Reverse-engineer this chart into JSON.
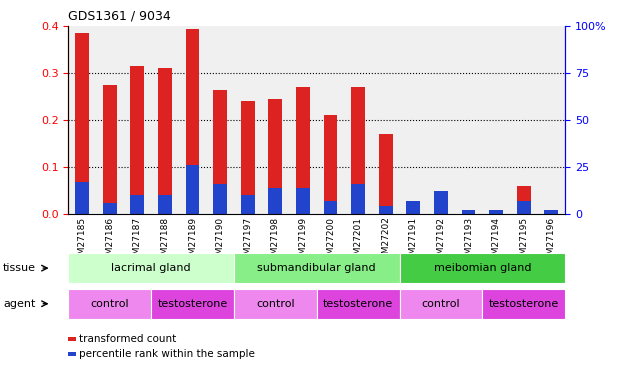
{
  "title": "GDS1361 / 9034",
  "samples": [
    "GSM27185",
    "GSM27186",
    "GSM27187",
    "GSM27188",
    "GSM27189",
    "GSM27190",
    "GSM27197",
    "GSM27198",
    "GSM27199",
    "GSM27200",
    "GSM27201",
    "GSM27202",
    "GSM27191",
    "GSM27192",
    "GSM27193",
    "GSM27194",
    "GSM27195",
    "GSM27196"
  ],
  "red_values": [
    0.385,
    0.275,
    0.315,
    0.31,
    0.395,
    0.265,
    0.24,
    0.245,
    0.27,
    0.21,
    0.27,
    0.17,
    0.0,
    0.04,
    0.0,
    0.0,
    0.06,
    0.0
  ],
  "blue_pct": [
    17,
    6,
    10,
    10,
    26,
    16,
    10,
    14,
    14,
    7,
    16,
    4,
    7,
    12,
    2,
    2,
    7,
    2
  ],
  "tissue_groups": [
    {
      "label": "lacrimal gland",
      "start": 0,
      "end": 6,
      "color": "#ccffcc"
    },
    {
      "label": "submandibular gland",
      "start": 6,
      "end": 12,
      "color": "#88ee88"
    },
    {
      "label": "meibomian gland",
      "start": 12,
      "end": 18,
      "color": "#44cc44"
    }
  ],
  "agent_groups": [
    {
      "label": "control",
      "start": 0,
      "end": 3,
      "color": "#ee88ee"
    },
    {
      "label": "testosterone",
      "start": 3,
      "end": 6,
      "color": "#dd44dd"
    },
    {
      "label": "control",
      "start": 6,
      "end": 9,
      "color": "#ee88ee"
    },
    {
      "label": "testosterone",
      "start": 9,
      "end": 12,
      "color": "#dd44dd"
    },
    {
      "label": "control",
      "start": 12,
      "end": 15,
      "color": "#ee88ee"
    },
    {
      "label": "testosterone",
      "start": 15,
      "end": 18,
      "color": "#dd44dd"
    }
  ],
  "ylim_left": [
    0,
    0.4
  ],
  "ylim_right": [
    0,
    100
  ],
  "yticks_left": [
    0,
    0.1,
    0.2,
    0.3,
    0.4
  ],
  "yticks_right": [
    0,
    25,
    50,
    75,
    100
  ],
  "ytick_labels_right": [
    "0",
    "25",
    "50",
    "75",
    "100%"
  ],
  "bar_width": 0.5,
  "red_color": "#dd2222",
  "blue_color": "#2244cc",
  "bg_color": "#f0f0f0",
  "label_red": "transformed count",
  "label_blue": "percentile rank within the sample",
  "tissue_label": "tissue",
  "agent_label": "agent"
}
